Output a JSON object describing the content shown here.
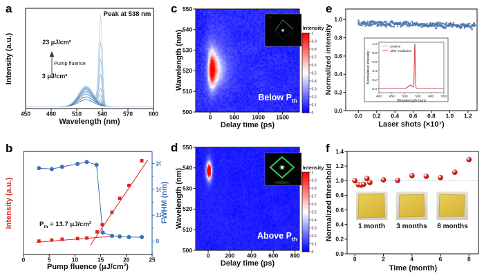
{
  "chart_data": [
    {
      "id": "a",
      "type": "line",
      "panel_letter": "a",
      "xlabel": "Wavelength (nm)",
      "ylabel": "Intensity (a.u.)",
      "xlim": [
        450,
        600
      ],
      "xticks": [
        450,
        480,
        510,
        540,
        570,
        600
      ],
      "xtick_labels": [
        "450",
        "480",
        "510",
        "540",
        "570",
        "600"
      ],
      "annotations": {
        "peak": "Peak at 538 nm",
        "top_fluence": "23 μJ/cm²",
        "arrow_label": "Pump fluence",
        "bottom_fluence": "3 μJ/cm²"
      },
      "spont_center": 521,
      "spont_sigma": 9,
      "lase_center": 538,
      "lase_sigma": 2.0,
      "curves": [
        {
          "fluence": 3,
          "spont": 0.07,
          "lase": 0
        },
        {
          "fluence": 5,
          "spont": 0.1,
          "lase": 0
        },
        {
          "fluence": 7,
          "spont": 0.125,
          "lase": 0
        },
        {
          "fluence": 9,
          "spont": 0.145,
          "lase": 0.008
        },
        {
          "fluence": 11,
          "spont": 0.16,
          "lase": 0.018
        },
        {
          "fluence": 13,
          "spont": 0.175,
          "lase": 0.038
        },
        {
          "fluence": 14.5,
          "spont": 0.185,
          "lase": 0.085
        },
        {
          "fluence": 16,
          "spont": 0.192,
          "lase": 0.16
        },
        {
          "fluence": 18,
          "spont": 0.198,
          "lase": 0.3
        },
        {
          "fluence": 20,
          "spont": 0.203,
          "lase": 0.46
        },
        {
          "fluence": 21.5,
          "spont": 0.207,
          "lase": 0.64
        },
        {
          "fluence": 23,
          "spont": 0.211,
          "lase": 0.92
        }
      ],
      "color_low": "#4174ab",
      "color_high": "#b7d6ee"
    },
    {
      "id": "b",
      "type": "scatter-line",
      "panel_letter": "b",
      "xlabel": "Pump fluence (μJ/cm²)",
      "ylabel_left": "Intensity (a.u.)",
      "ylabel_right": "FWHM (nm)",
      "xlim": [
        0,
        25
      ],
      "xticks": [
        0,
        5,
        10,
        15,
        20,
        25
      ],
      "xtick_labels": [
        "0",
        "5",
        "10",
        "15",
        "20",
        "25"
      ],
      "yticks_right": [
        8,
        12,
        16,
        20
      ],
      "ytick_right_labels": [
        "8",
        "12",
        "16",
        "20"
      ],
      "yticks_right_minor": [
        6,
        10,
        14,
        18
      ],
      "ylim_right": [
        5.91,
        21.88
      ],
      "intensity_points": [
        [
          3,
          0.13
        ],
        [
          5.5,
          0.14
        ],
        [
          7.5,
          0.148
        ],
        [
          10.5,
          0.155
        ],
        [
          12.3,
          0.16
        ],
        [
          14.3,
          0.22
        ],
        [
          15.3,
          0.29
        ],
        [
          17.2,
          0.41
        ],
        [
          18.7,
          0.545
        ],
        [
          20.5,
          0.67
        ],
        [
          23,
          0.91
        ]
      ],
      "fwhm_points": [
        [
          3,
          19.3
        ],
        [
          5.5,
          19.15
        ],
        [
          7.5,
          19.5
        ],
        [
          10.5,
          19.95
        ],
        [
          12.3,
          20.25
        ],
        [
          14.2,
          19.8
        ],
        [
          15.4,
          9.3
        ],
        [
          17.2,
          8.8
        ],
        [
          18.7,
          8.7
        ],
        [
          20.5,
          8.6
        ],
        [
          23,
          8.6
        ]
      ],
      "fit_shallow": [
        [
          2.5,
          0.118
        ],
        [
          16.8,
          0.175
        ]
      ],
      "fit_steep": [
        [
          13.0,
          0.09
        ],
        [
          24.2,
          0.92
        ]
      ],
      "threshold_p": "P",
      "threshold_sub": "th",
      "threshold_eq": " = 13.7 μJ/cm²",
      "color_intensity": "#e0231e",
      "color_fwhm": "#3a6fb8"
    },
    {
      "id": "c",
      "type": "heatmap",
      "panel_letter": "c",
      "xlabel": "Delay time (ps)",
      "ylabel": "Wavelength (nm)",
      "xlim": [
        -300,
        1850
      ],
      "xticks": [
        0,
        500,
        1000,
        1500
      ],
      "xtick_labels": [
        "0",
        "500",
        "1000",
        "1500"
      ],
      "ylim": [
        500,
        550
      ],
      "yticks": [
        500,
        510,
        520,
        530,
        540,
        550
      ],
      "ytick_labels": [
        "500",
        "510",
        "520",
        "530",
        "540",
        "550"
      ],
      "colorbar": {
        "title": "Intensity",
        "tick_labels": [
          "1",
          "0.9",
          "0.8",
          "0.7",
          "0.6",
          "0.5",
          "0.4",
          "0.3",
          "0.2",
          "0.1",
          "0"
        ]
      },
      "blob": {
        "t0": 45,
        "lam0": 520.5,
        "sigma_lam": 5.3,
        "rise": 50,
        "decay": 118,
        "amp": 1.02,
        "halo_sigma_lam": 10.5,
        "halo_rise": 100,
        "halo_decay": 240,
        "halo_amp": 0.22
      },
      "label_main": "Below P",
      "label_sub": "th",
      "inset_name": "microplate-photo-below-threshold"
    },
    {
      "id": "d",
      "type": "heatmap",
      "panel_letter": "d",
      "xlabel": "Delay time (ps)",
      "ylabel": "Wavelength (nm)",
      "xlim": [
        -115,
        840
      ],
      "xticks": [
        0,
        200,
        400,
        600,
        800
      ],
      "xtick_labels": [
        "0",
        "200",
        "400",
        "600",
        "800"
      ],
      "ylim": [
        500,
        550
      ],
      "yticks": [
        500,
        510,
        520,
        530,
        540,
        550
      ],
      "ytick_labels": [
        "500",
        "510",
        "520",
        "530",
        "540",
        "550"
      ],
      "colorbar": {
        "title": "Intensity",
        "tick_labels": [
          "1",
          "0.9",
          "0.8",
          "0.7",
          "0.6",
          "0.5",
          "0.4",
          "0.3",
          "0.2",
          "0.1",
          "0"
        ]
      },
      "blob": {
        "t0": 8,
        "lam0": 538.5,
        "sigma_lam": 2.0,
        "sigma_t": 12,
        "amp": 1.35,
        "halo_sigma_lam": 4,
        "halo_sigma_t": 22,
        "halo_amp": 0.4
      },
      "label_main": "Above P",
      "label_sub": "th",
      "inset_name": "microplate-photo-above-threshold"
    },
    {
      "id": "e",
      "type": "scatter",
      "panel_letter": "e",
      "xlabel": "Laser shots (×10⁷)",
      "ylabel": "Normalized intensity",
      "xlim": [
        -0.139,
        1.3
      ],
      "xticks": [
        0.0,
        0.2,
        0.4,
        0.6,
        0.8,
        1.0,
        1.2
      ],
      "xtick_labels": [
        "0.0",
        "0.2",
        "0.4",
        "0.6",
        "0.8",
        "1.0",
        "1.2"
      ],
      "ylim": [
        0,
        1.116
      ],
      "yticks": [
        0.0,
        0.2,
        0.4,
        0.6,
        0.8,
        1.0
      ],
      "ytick_labels": [
        "0.0",
        "0.2",
        "0.4",
        "0.6",
        "0.8",
        "1.0"
      ],
      "band": {
        "n": 300,
        "x_max": 1.285,
        "mean_start": 0.962,
        "mean_end": 0.927,
        "noise": 0.038,
        "color": "#4a74ad"
      },
      "inset": {
        "xlabel": "Wavelength (nm)",
        "ylabel": "Normalized intensity",
        "xlim": [
          400,
          650
        ],
        "xticks": [
          400,
          450,
          500,
          550,
          600,
          650
        ],
        "xtick_labels": [
          "400",
          "450",
          "500",
          "550",
          "600",
          "650"
        ],
        "yticks": [
          0.0,
          0.2,
          0.4,
          0.6,
          0.8,
          1.0
        ],
        "ytick_labels": [
          "0.0",
          "0.2",
          "0.4",
          "0.6",
          "0.8",
          "1.0"
        ],
        "legend": [
          "pristine",
          "after irradiation"
        ],
        "legend_colors": [
          "#7ba7d7",
          "#e03030"
        ],
        "bump_center": 521,
        "bump_sigma": 8,
        "peak_center": 538,
        "peak_sigma": 1.7
      }
    },
    {
      "id": "f",
      "type": "scatter",
      "panel_letter": "f",
      "xlabel": "Time (month)",
      "ylabel": "Normalized threshold",
      "xlim": [
        -0.545,
        8.665
      ],
      "xticks": [
        0,
        2,
        4,
        6,
        8
      ],
      "xtick_labels": [
        "0",
        "2",
        "4",
        "6",
        "8"
      ],
      "ylim": [
        0,
        1.4
      ],
      "yticks": [
        0.0,
        0.2,
        0.4,
        0.6,
        0.8,
        1.0,
        1.2,
        1.4
      ],
      "ytick_labels": [
        "0.0",
        "0.2",
        "0.4",
        "0.6",
        "0.8",
        "1.0",
        "1.2",
        "1.4"
      ],
      "points": [
        [
          0,
          1.0
        ],
        [
          0.25,
          0.945
        ],
        [
          0.45,
          0.94
        ],
        [
          0.62,
          0.952
        ],
        [
          0.85,
          1.03
        ],
        [
          1.05,
          0.975
        ],
        [
          2,
          1.012
        ],
        [
          3,
          1.005
        ],
        [
          4,
          1.07
        ],
        [
          5,
          1.06
        ],
        [
          6,
          1.042
        ],
        [
          7,
          1.115
        ],
        [
          8,
          1.29
        ]
      ],
      "refline": 1.0,
      "refline_color": "#9fc4e4",
      "marker_color": "#e02318",
      "photos": [
        {
          "label": "1 month"
        },
        {
          "label": "3 months"
        },
        {
          "label": "8 months"
        }
      ],
      "film_color": "#e0c145"
    }
  ]
}
